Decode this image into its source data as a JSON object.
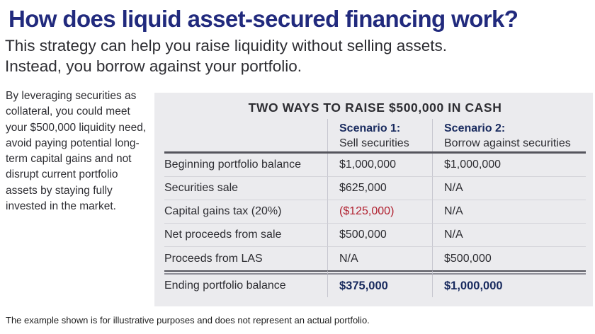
{
  "page": {
    "title": "How does liquid asset-secured financing work?",
    "subtitle_line1": "This strategy can help you raise liquidity without selling assets.",
    "subtitle_line2": "Instead, you borrow against your portfolio.",
    "left_note": "By leveraging securities as collateral, you could meet your $500,000 liquidity need, avoid paying potential long-term capital gains and not disrupt current portfolio assets by staying fully invested in the market.",
    "footnote": "The example shown is for illustrative purposes and does not represent an actual portfolio."
  },
  "table": {
    "title": "TWO WAYS TO RAISE $500,000 IN CASH",
    "columns": [
      {
        "label": "Scenario 1:",
        "sublabel": "Sell securities"
      },
      {
        "label": "Scenario 2:",
        "sublabel": "Borrow against securities"
      }
    ],
    "rows": [
      {
        "label": "Beginning portfolio balance",
        "scenario1": "$1,000,000",
        "scenario2": "$1,000,000"
      },
      {
        "label": "Securities sale",
        "scenario1": "$625,000",
        "scenario2": "N/A"
      },
      {
        "label": "Capital gains tax (20%)",
        "scenario1": "($125,000)",
        "scenario2": "N/A"
      },
      {
        "label": "Net proceeds from sale",
        "scenario1": "$500,000",
        "scenario2": "N/A"
      },
      {
        "label": "Proceeds from LAS",
        "scenario1": "N/A",
        "scenario2": "$500,000"
      }
    ],
    "total_row": {
      "label": "Ending portfolio balance",
      "scenario1": "$375,000",
      "scenario2": "$1,000,000"
    }
  },
  "colors": {
    "navy": "#212a7d",
    "tablenavy": "#182a5e",
    "red": "#b01f2e",
    "panel": "#ebebee",
    "text": "#2d2d32",
    "darkline": "#55555d",
    "lightline": "#d4d4da",
    "divider": "#c7c7cf",
    "dblbottom": "#8f8f98",
    "footnote": "#1d1d1d"
  }
}
